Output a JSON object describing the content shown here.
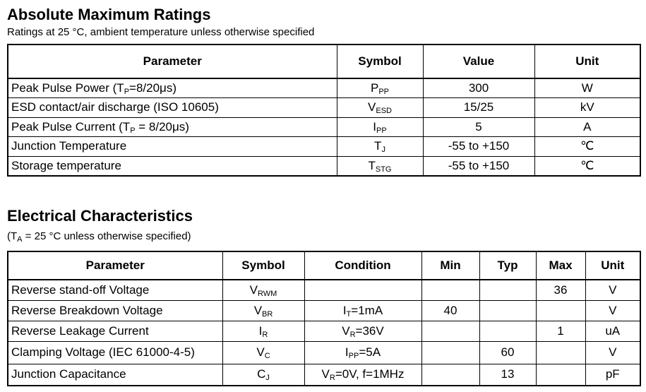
{
  "absolute": {
    "title": "Absolute Maximum Ratings",
    "subtitle": "Ratings at  25 °C, ambient temperature unless otherwise specified",
    "headers": [
      "Parameter",
      "Symbol",
      "Value",
      "Unit"
    ],
    "rows": [
      {
        "param_pre": "Peak Pulse Power (T",
        "param_sub": "P",
        "param_post": "=8/20μs)",
        "sym": "P",
        "sym_sub": "PP",
        "value": "300",
        "unit": "W"
      },
      {
        "param_pre": "ESD contact/air discharge (ISO 10605)",
        "param_sub": "",
        "param_post": "",
        "sym": "V",
        "sym_sub": "ESD",
        "value": "15/25",
        "unit": "kV"
      },
      {
        "param_pre": "Peak Pulse Current (T",
        "param_sub": "P",
        "param_post": " = 8/20μs)",
        "sym": "I",
        "sym_sub": "PP",
        "value": "5",
        "unit": "A"
      },
      {
        "param_pre": "Junction Temperature",
        "param_sub": "",
        "param_post": "",
        "sym": "T",
        "sym_sub": "J",
        "value": "-55 to +150",
        "unit": "℃"
      },
      {
        "param_pre": "Storage temperature",
        "param_sub": "",
        "param_post": "",
        "sym": "T",
        "sym_sub": "STG",
        "value": "-55 to +150",
        "unit": "℃"
      }
    ]
  },
  "electrical": {
    "title": "Electrical Characteristics",
    "subtitle_pre": "(T",
    "subtitle_sub": "A",
    "subtitle_post": " = 25 °C unless otherwise specified)",
    "headers": [
      "Parameter",
      "Symbol",
      "Condition",
      "Min",
      "Typ",
      "Max",
      "Unit"
    ],
    "rows": [
      {
        "param": "Reverse stand-off Voltage",
        "sym": "V",
        "sym_sub": "RWM",
        "cond_pre": "",
        "cond_sub": "",
        "cond_post": "",
        "min": "",
        "typ": "",
        "max": "36",
        "unit": "V"
      },
      {
        "param": "Reverse Breakdown Voltage",
        "sym": "V",
        "sym_sub": "BR",
        "cond_pre": "I",
        "cond_sub": "T",
        "cond_post": "=1mA",
        "min": "40",
        "typ": "",
        "max": "",
        "unit": "V"
      },
      {
        "param": "Reverse Leakage Current",
        "sym": "I",
        "sym_sub": "R",
        "cond_pre": "V",
        "cond_sub": "R",
        "cond_post": "=36V",
        "min": "",
        "typ": "",
        "max": "1",
        "unit": "uA"
      },
      {
        "param": "Clamping Voltage (IEC 61000-4-5)",
        "sym": "V",
        "sym_sub": "C",
        "cond_pre": "I",
        "cond_sub": "PP",
        "cond_post": "=5A",
        "min": "",
        "typ": "60",
        "max": "",
        "unit": "V"
      },
      {
        "param": "Junction Capacitance",
        "sym": "C",
        "sym_sub": "J",
        "cond_pre": "V",
        "cond_sub": "R",
        "cond_post": "=0V, f=1MHz",
        "min": "",
        "typ": "13",
        "max": "",
        "unit": "pF"
      }
    ]
  }
}
